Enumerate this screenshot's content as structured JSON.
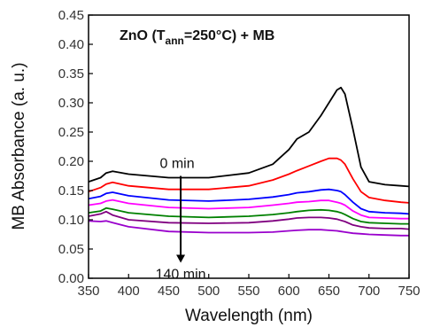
{
  "chart_data": {
    "type": "line",
    "title": {
      "prefix": "ZnO (T",
      "subscript": "ann",
      "suffix": "=250°C) + MB"
    },
    "xlabel": "Wavelength (nm)",
    "ylabel": "MB Absorbance (a. u.)",
    "xlim": [
      350,
      750
    ],
    "ylim": [
      0.0,
      0.45
    ],
    "xticks": [
      "350",
      "400",
      "450",
      "500",
      "550",
      "600",
      "650",
      "700",
      "750"
    ],
    "yticks": [
      "0.00",
      "0.05",
      "0.10",
      "0.15",
      "0.20",
      "0.25",
      "0.30",
      "0.35",
      "0.40",
      "0.45"
    ],
    "grid": false,
    "annotations": {
      "start_label": "0 min",
      "end_label": "140 min",
      "arrow_x": 465,
      "arrow_from": 0.175,
      "arrow_to": 0.028
    },
    "x": [
      350,
      365,
      372,
      380,
      400,
      450,
      500,
      550,
      580,
      600,
      610,
      625,
      640,
      650,
      660,
      665,
      670,
      680,
      690,
      700,
      720,
      740,
      750
    ],
    "series": [
      {
        "color": "#000000",
        "values": [
          0.165,
          0.172,
          0.18,
          0.183,
          0.178,
          0.172,
          0.172,
          0.18,
          0.195,
          0.22,
          0.238,
          0.25,
          0.278,
          0.3,
          0.322,
          0.326,
          0.315,
          0.255,
          0.19,
          0.165,
          0.16,
          0.158,
          0.157
        ]
      },
      {
        "color": "#ff0000",
        "values": [
          0.148,
          0.155,
          0.161,
          0.164,
          0.158,
          0.152,
          0.152,
          0.158,
          0.168,
          0.178,
          0.184,
          0.192,
          0.2,
          0.205,
          0.205,
          0.202,
          0.195,
          0.17,
          0.148,
          0.138,
          0.133,
          0.13,
          0.129
        ]
      },
      {
        "color": "#0000ff",
        "values": [
          0.136,
          0.14,
          0.145,
          0.147,
          0.141,
          0.134,
          0.132,
          0.135,
          0.139,
          0.143,
          0.146,
          0.148,
          0.151,
          0.152,
          0.15,
          0.148,
          0.143,
          0.13,
          0.119,
          0.114,
          0.112,
          0.111,
          0.11
        ]
      },
      {
        "color": "#ff00ff",
        "values": [
          0.125,
          0.128,
          0.132,
          0.134,
          0.128,
          0.121,
          0.119,
          0.121,
          0.125,
          0.128,
          0.13,
          0.131,
          0.133,
          0.133,
          0.13,
          0.128,
          0.125,
          0.115,
          0.108,
          0.104,
          0.103,
          0.102,
          0.102
        ]
      },
      {
        "color": "#008000",
        "values": [
          0.112,
          0.115,
          0.12,
          0.118,
          0.112,
          0.106,
          0.104,
          0.106,
          0.109,
          0.112,
          0.114,
          0.116,
          0.117,
          0.116,
          0.114,
          0.112,
          0.109,
          0.102,
          0.097,
          0.095,
          0.094,
          0.093,
          0.093
        ]
      },
      {
        "color": "#800080",
        "values": [
          0.106,
          0.11,
          0.114,
          0.108,
          0.1,
          0.095,
          0.094,
          0.095,
          0.098,
          0.101,
          0.103,
          0.104,
          0.104,
          0.103,
          0.101,
          0.099,
          0.097,
          0.091,
          0.088,
          0.086,
          0.085,
          0.085,
          0.084
        ]
      },
      {
        "color": "#9900cc",
        "values": [
          0.098,
          0.097,
          0.098,
          0.095,
          0.088,
          0.08,
          0.078,
          0.078,
          0.079,
          0.081,
          0.082,
          0.083,
          0.083,
          0.082,
          0.081,
          0.08,
          0.079,
          0.077,
          0.076,
          0.075,
          0.074,
          0.073,
          0.073
        ]
      }
    ]
  }
}
